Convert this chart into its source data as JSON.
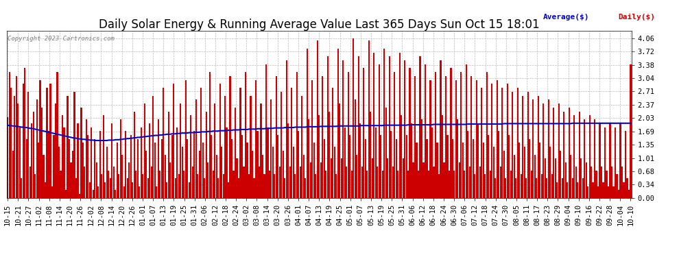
{
  "title": "Daily Solar Energy & Running Average Value Last 365 Days Sun Oct 15 18:01",
  "copyright": "Copyright 2023 Cartronics.com",
  "legend_avg": "Average($)",
  "legend_daily": "Daily($)",
  "yticks": [
    0.0,
    0.34,
    0.68,
    1.01,
    1.35,
    1.69,
    2.03,
    2.37,
    2.71,
    3.04,
    3.38,
    3.72,
    4.06
  ],
  "ylim": [
    0.0,
    4.25
  ],
  "bar_color": "#cc0000",
  "avg_color": "#0000cc",
  "daily_color": "#cc0000",
  "bg_color": "#ffffff",
  "grid_color": "#bbbbbb",
  "title_fontsize": 12,
  "tick_fontsize": 7.5,
  "xtick_labels": [
    "10-15",
    "10-21",
    "10-27",
    "11-02",
    "11-08",
    "11-14",
    "11-20",
    "11-26",
    "12-02",
    "12-08",
    "12-14",
    "12-20",
    "12-26",
    "01-01",
    "01-07",
    "01-13",
    "01-19",
    "01-25",
    "01-31",
    "02-06",
    "02-12",
    "02-18",
    "02-24",
    "03-02",
    "03-08",
    "03-14",
    "03-20",
    "03-26",
    "04-01",
    "04-07",
    "04-13",
    "04-19",
    "04-25",
    "05-01",
    "05-07",
    "05-13",
    "05-19",
    "05-25",
    "05-31",
    "06-06",
    "06-12",
    "06-18",
    "06-24",
    "06-30",
    "07-06",
    "07-12",
    "07-18",
    "07-24",
    "07-30",
    "08-05",
    "08-11",
    "08-17",
    "08-23",
    "08-29",
    "09-04",
    "09-10",
    "09-16",
    "09-22",
    "09-28",
    "10-04",
    "10-10"
  ],
  "num_bars": 365,
  "avg_values": [
    1.85,
    1.84,
    1.84,
    1.83,
    1.83,
    1.82,
    1.82,
    1.81,
    1.8,
    1.8,
    1.79,
    1.79,
    1.78,
    1.77,
    1.77,
    1.76,
    1.75,
    1.74,
    1.73,
    1.72,
    1.71,
    1.7,
    1.69,
    1.68,
    1.67,
    1.66,
    1.65,
    1.64,
    1.63,
    1.62,
    1.61,
    1.6,
    1.59,
    1.58,
    1.57,
    1.56,
    1.55,
    1.54,
    1.53,
    1.52,
    1.52,
    1.51,
    1.5,
    1.5,
    1.49,
    1.49,
    1.48,
    1.48,
    1.47,
    1.47,
    1.47,
    1.46,
    1.46,
    1.46,
    1.46,
    1.46,
    1.46,
    1.46,
    1.46,
    1.47,
    1.47,
    1.47,
    1.47,
    1.48,
    1.48,
    1.48,
    1.49,
    1.49,
    1.5,
    1.5,
    1.51,
    1.51,
    1.52,
    1.52,
    1.53,
    1.53,
    1.54,
    1.54,
    1.55,
    1.55,
    1.56,
    1.56,
    1.57,
    1.57,
    1.58,
    1.58,
    1.59,
    1.59,
    1.59,
    1.6,
    1.6,
    1.61,
    1.61,
    1.62,
    1.62,
    1.62,
    1.63,
    1.63,
    1.63,
    1.64,
    1.64,
    1.64,
    1.65,
    1.65,
    1.65,
    1.65,
    1.66,
    1.66,
    1.66,
    1.66,
    1.67,
    1.67,
    1.67,
    1.68,
    1.68,
    1.68,
    1.68,
    1.69,
    1.69,
    1.69,
    1.7,
    1.7,
    1.7,
    1.7,
    1.71,
    1.71,
    1.71,
    1.71,
    1.72,
    1.72,
    1.72,
    1.72,
    1.73,
    1.73,
    1.73,
    1.73,
    1.74,
    1.74,
    1.74,
    1.74,
    1.74,
    1.75,
    1.75,
    1.75,
    1.75,
    1.75,
    1.76,
    1.76,
    1.76,
    1.76,
    1.76,
    1.77,
    1.77,
    1.77,
    1.77,
    1.77,
    1.78,
    1.78,
    1.78,
    1.78,
    1.78,
    1.78,
    1.79,
    1.79,
    1.79,
    1.79,
    1.79,
    1.79,
    1.8,
    1.8,
    1.8,
    1.8,
    1.8,
    1.8,
    1.8,
    1.81,
    1.81,
    1.81,
    1.81,
    1.81,
    1.81,
    1.81,
    1.81,
    1.82,
    1.82,
    1.82,
    1.82,
    1.82,
    1.82,
    1.82,
    1.82,
    1.82,
    1.82,
    1.83,
    1.83,
    1.83,
    1.83,
    1.83,
    1.83,
    1.83,
    1.83,
    1.83,
    1.83,
    1.83,
    1.83,
    1.83,
    1.84,
    1.84,
    1.84,
    1.84,
    1.84,
    1.84,
    1.84,
    1.84,
    1.84,
    1.84,
    1.84,
    1.84,
    1.84,
    1.84,
    1.85,
    1.85,
    1.85,
    1.85,
    1.85,
    1.85,
    1.85,
    1.85,
    1.85,
    1.85,
    1.85,
    1.85,
    1.85,
    1.85,
    1.86,
    1.86,
    1.86,
    1.86,
    1.86,
    1.86,
    1.86,
    1.86,
    1.86,
    1.86,
    1.86,
    1.86,
    1.86,
    1.86,
    1.86,
    1.87,
    1.87,
    1.87,
    1.87,
    1.87,
    1.87,
    1.87,
    1.87,
    1.87,
    1.87,
    1.87,
    1.87,
    1.87,
    1.87,
    1.87,
    1.87,
    1.87,
    1.87,
    1.87,
    1.87,
    1.88,
    1.88,
    1.88,
    1.88,
    1.88,
    1.88,
    1.88,
    1.88,
    1.88,
    1.88,
    1.88,
    1.88,
    1.88,
    1.88,
    1.88,
    1.88,
    1.88,
    1.88,
    1.88,
    1.88,
    1.88,
    1.89,
    1.89,
    1.89,
    1.89,
    1.89,
    1.89,
    1.89,
    1.89,
    1.89,
    1.89,
    1.89,
    1.89,
    1.89,
    1.89,
    1.89,
    1.89,
    1.89,
    1.89,
    1.89,
    1.89,
    1.89,
    1.89,
    1.89,
    1.89,
    1.89,
    1.89,
    1.89,
    1.89,
    1.89,
    1.89,
    1.89,
    1.89,
    1.89,
    1.89,
    1.89,
    1.89,
    1.89,
    1.89,
    1.89,
    1.89,
    1.9,
    1.9,
    1.9,
    1.9,
    1.9,
    1.9,
    1.9,
    1.9,
    1.9,
    1.9,
    1.9,
    1.9,
    1.9,
    1.9,
    1.9,
    1.9,
    1.9,
    1.9,
    1.9,
    1.9,
    1.9,
    1.9,
    1.9,
    1.9,
    1.9,
    1.9,
    1.9,
    1.9,
    1.9,
    1.9,
    1.9,
    1.9,
    1.9,
    1.9,
    1.9
  ],
  "bar_values": [
    2.05,
    3.2,
    2.8,
    1.2,
    2.6,
    3.1,
    2.4,
    1.8,
    0.5,
    2.9,
    3.3,
    1.5,
    2.7,
    0.8,
    1.9,
    2.2,
    0.6,
    2.5,
    1.4,
    3.0,
    2.3,
    1.1,
    0.4,
    2.8,
    1.7,
    2.9,
    0.3,
    1.6,
    2.4,
    3.2,
    1.3,
    0.7,
    2.1,
    1.8,
    0.2,
    2.6,
    1.5,
    0.9,
    1.2,
    2.7,
    0.5,
    1.9,
    0.1,
    2.3,
    1.4,
    0.8,
    2.0,
    1.6,
    0.4,
    1.8,
    0.2,
    1.5,
    0.9,
    0.3,
    1.7,
    0.6,
    2.1,
    0.4,
    1.3,
    0.7,
    0.5,
    1.9,
    0.8,
    0.2,
    1.4,
    0.6,
    2.0,
    1.1,
    0.3,
    1.7,
    0.5,
    0.9,
    1.6,
    0.4,
    2.2,
    0.7,
    1.5,
    0.3,
    1.8,
    0.6,
    2.4,
    1.2,
    0.5,
    1.9,
    0.8,
    2.6,
    1.4,
    0.3,
    2.0,
    0.7,
    1.5,
    2.8,
    1.1,
    0.4,
    2.2,
    0.9,
    1.6,
    2.9,
    0.5,
    1.8,
    0.6,
    2.4,
    1.3,
    0.7,
    3.0,
    1.5,
    0.4,
    2.1,
    0.8,
    1.7,
    2.5,
    0.6,
    1.2,
    2.8,
    1.4,
    0.5,
    2.2,
    0.9,
    3.2,
    1.6,
    0.7,
    2.4,
    1.1,
    0.5,
    2.9,
    1.3,
    0.6,
    2.6,
    1.8,
    0.4,
    3.1,
    1.5,
    0.7,
    2.3,
    1.0,
    0.5,
    2.8,
    1.6,
    0.8,
    3.2,
    1.4,
    0.6,
    2.6,
    1.2,
    0.5,
    3.0,
    1.7,
    0.8,
    2.4,
    1.1,
    0.6,
    3.4,
    1.8,
    0.7,
    2.5,
    1.3,
    0.6,
    3.1,
    1.6,
    0.8,
    2.7,
    1.2,
    0.5,
    3.5,
    1.9,
    0.8,
    2.8,
    1.3,
    0.6,
    3.2,
    1.7,
    0.8,
    2.6,
    1.1,
    0.5,
    3.8,
    2.0,
    0.9,
    3.0,
    1.4,
    0.6,
    4.0,
    2.1,
    0.9,
    3.1,
    1.5,
    0.7,
    3.6,
    2.2,
    1.0,
    2.8,
    1.3,
    0.6,
    3.8,
    2.4,
    1.0,
    3.5,
    1.8,
    0.8,
    3.2,
    1.6,
    0.7,
    4.06,
    2.5,
    1.1,
    3.6,
    1.9,
    0.8,
    3.3,
    1.5,
    0.7,
    4.0,
    2.2,
    1.0,
    3.7,
    1.8,
    0.8,
    3.4,
    1.6,
    0.7,
    3.8,
    2.3,
    1.0,
    3.6,
    1.7,
    0.8,
    3.2,
    1.5,
    0.7,
    3.7,
    2.1,
    1.0,
    3.5,
    1.6,
    0.7,
    3.3,
    1.9,
    0.9,
    3.1,
    1.4,
    0.7,
    3.6,
    2.0,
    0.9,
    3.4,
    1.5,
    0.7,
    3.0,
    1.8,
    0.8,
    3.2,
    1.4,
    0.6,
    3.5,
    2.1,
    0.9,
    3.1,
    1.6,
    0.7,
    3.3,
    1.5,
    0.7,
    3.0,
    2.0,
    0.9,
    3.2,
    1.4,
    0.7,
    3.4,
    1.7,
    0.8,
    3.1,
    1.5,
    0.6,
    3.0,
    1.9,
    0.8,
    2.8,
    1.4,
    0.6,
    3.2,
    1.6,
    0.7,
    2.9,
    1.3,
    0.5,
    3.0,
    1.7,
    0.8,
    2.8,
    1.2,
    0.5,
    2.9,
    1.6,
    0.7,
    2.7,
    1.1,
    0.5,
    2.8,
    1.4,
    0.6,
    2.6,
    1.3,
    0.5,
    2.7,
    1.5,
    0.7,
    2.5,
    1.1,
    0.5,
    2.6,
    1.4,
    0.6,
    2.4,
    1.0,
    0.5,
    2.5,
    1.3,
    0.6,
    2.3,
    1.0,
    0.4,
    2.4,
    1.2,
    0.5,
    2.2,
    0.9,
    0.4,
    2.3,
    1.1,
    0.5,
    2.1,
    0.8,
    0.4,
    2.2,
    1.0,
    0.5,
    2.0,
    0.9,
    0.3,
    2.1,
    0.8,
    0.4,
    2.0,
    0.7,
    0.3,
    1.9,
    0.8,
    0.4,
    1.8,
    0.7,
    0.3,
    1.9,
    0.8,
    0.3,
    1.8,
    0.6,
    0.2,
    1.9,
    0.8,
    0.4,
    1.7,
    0.5,
    0.2,
    3.4
  ]
}
